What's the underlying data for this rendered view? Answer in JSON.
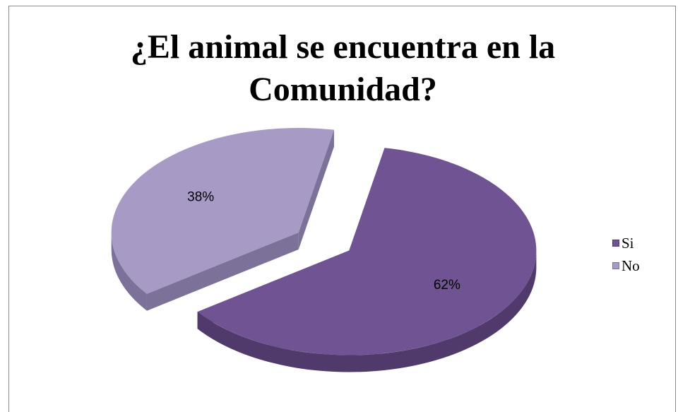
{
  "chart_data": {
    "type": "pie",
    "title": "¿El animal se encuentra en la Comunidad?",
    "title_lines": [
      "¿El animal se encuentra en la",
      "Comunidad?"
    ],
    "categories": [
      "Si",
      "No"
    ],
    "values": [
      62,
      38
    ],
    "labels": [
      "62%",
      "38%"
    ],
    "colors": [
      "#6f5393",
      "#a79ac4"
    ],
    "side_colors": [
      "#4f3a6b",
      "#7c7198"
    ],
    "legend_position": "right",
    "style": "3d-exploded"
  }
}
